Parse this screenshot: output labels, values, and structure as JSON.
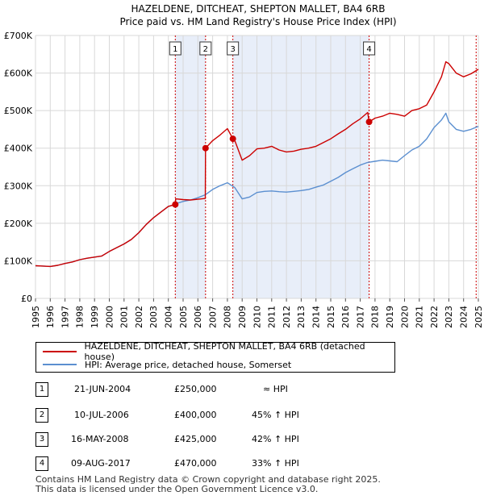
{
  "chart_data": {
    "type": "line",
    "title": "HAZELDENE, DITCHEAT, SHEPTON MALLET, BA4 6RB",
    "subtitle": "Price paid vs. HM Land Registry's House Price Index (HPI)",
    "xlabel": "",
    "ylabel": "",
    "xlim": [
      1995,
      2025
    ],
    "ylim": [
      0,
      700000
    ],
    "y_ticks": [
      0,
      100000,
      200000,
      300000,
      400000,
      500000,
      600000,
      700000
    ],
    "y_tick_labels": [
      "£0",
      "£100K",
      "£200K",
      "£300K",
      "£400K",
      "£500K",
      "£600K",
      "£700K"
    ],
    "x_ticks": [
      "1995",
      "1996",
      "1997",
      "1998",
      "1999",
      "2000",
      "2001",
      "2002",
      "2003",
      "2004",
      "2005",
      "2006",
      "2007",
      "2008",
      "2009",
      "2010",
      "2011",
      "2012",
      "2013",
      "2014",
      "2015",
      "2016",
      "2017",
      "2018",
      "2019",
      "2020",
      "2021",
      "2022",
      "2023",
      "2024",
      "2025"
    ],
    "grid": true,
    "colors": {
      "property": "#cc0000",
      "hpi": "#5b8fd0",
      "band": "#e8eef9",
      "marker_line": "#cc0000"
    },
    "series": [
      {
        "name": "HAZELDENE, DITCHEAT, SHEPTON MALLET, BA4 6RB (detached house)",
        "x": [
          1995.0,
          1995.5,
          1996.0,
          1996.5,
          1997.0,
          1997.5,
          1998.0,
          1998.5,
          1999.0,
          1999.5,
          2000.0,
          2000.5,
          2001.0,
          2001.5,
          2002.0,
          2002.5,
          2003.0,
          2003.5,
          2004.0,
          2004.47,
          2004.5,
          2005.0,
          2005.5,
          2006.0,
          2006.5,
          2006.52,
          2007.0,
          2007.5,
          2008.0,
          2008.37,
          2008.5,
          2009.0,
          2009.5,
          2010.0,
          2010.5,
          2011.0,
          2011.5,
          2012.0,
          2012.5,
          2013.0,
          2013.5,
          2014.0,
          2014.5,
          2015.0,
          2015.5,
          2016.0,
          2016.5,
          2017.0,
          2017.5,
          2017.6,
          2018.0,
          2018.5,
          2019.0,
          2019.5,
          2020.0,
          2020.5,
          2021.0,
          2021.5,
          2022.0,
          2022.5,
          2022.8,
          2023.0,
          2023.5,
          2024.0,
          2024.5,
          2025.0
        ],
        "values": [
          87000,
          86000,
          85000,
          88000,
          93000,
          97000,
          103000,
          107000,
          110000,
          113000,
          125000,
          135000,
          145000,
          157000,
          175000,
          197000,
          215000,
          230000,
          245000,
          250000,
          265000,
          263000,
          262000,
          264000,
          266000,
          400000,
          420000,
          435000,
          452000,
          425000,
          420000,
          368000,
          380000,
          398000,
          400000,
          405000,
          395000,
          390000,
          392000,
          397000,
          400000,
          405000,
          415000,
          425000,
          438000,
          450000,
          465000,
          478000,
          495000,
          470000,
          480000,
          485000,
          493000,
          490000,
          485000,
          500000,
          505000,
          515000,
          550000,
          590000,
          630000,
          625000,
          600000,
          590000,
          598000,
          610000
        ]
      },
      {
        "name": "HPI: Average price, detached house, Somerset",
        "x": [
          1995.0,
          1995.5,
          1996.0,
          1996.5,
          1997.0,
          1997.5,
          1998.0,
          1998.5,
          1999.0,
          1999.5,
          2000.0,
          2000.5,
          2001.0,
          2001.5,
          2002.0,
          2002.5,
          2003.0,
          2003.5,
          2004.0,
          2004.47,
          2004.5,
          2005.0,
          2005.5,
          2006.0,
          2006.5,
          2007.0,
          2007.5,
          2008.0,
          2008.5,
          2009.0,
          2009.5,
          2010.0,
          2010.5,
          2011.0,
          2011.5,
          2012.0,
          2012.5,
          2013.0,
          2013.5,
          2014.0,
          2014.5,
          2015.0,
          2015.5,
          2016.0,
          2016.5,
          2017.0,
          2017.5,
          2018.0,
          2018.5,
          2019.0,
          2019.5,
          2020.0,
          2020.5,
          2021.0,
          2021.5,
          2022.0,
          2022.5,
          2022.8,
          2023.0,
          2023.5,
          2024.0,
          2024.5,
          2025.0
        ],
        "values": [
          87000,
          86000,
          85000,
          88000,
          93000,
          97000,
          103000,
          107000,
          110000,
          113000,
          125000,
          135000,
          145000,
          157000,
          175000,
          197000,
          215000,
          230000,
          245000,
          250000,
          252000,
          258000,
          262000,
          268000,
          276000,
          290000,
          300000,
          308000,
          295000,
          265000,
          270000,
          282000,
          285000,
          286000,
          284000,
          283000,
          285000,
          287000,
          290000,
          296000,
          302000,
          312000,
          322000,
          335000,
          345000,
          355000,
          362000,
          365000,
          368000,
          366000,
          364000,
          380000,
          395000,
          405000,
          425000,
          455000,
          475000,
          493000,
          470000,
          450000,
          445000,
          450000,
          458000
        ]
      }
    ],
    "sales": [
      {
        "label": "1",
        "x": 2004.47,
        "value": 250000
      },
      {
        "label": "2",
        "x": 2006.52,
        "value": 400000
      },
      {
        "label": "3",
        "x": 2008.37,
        "value": 425000
      },
      {
        "label": "4",
        "x": 2017.6,
        "value": 470000
      }
    ],
    "shaded_bands": [
      [
        2004.47,
        2006.52
      ],
      [
        2008.37,
        2017.6
      ]
    ]
  },
  "legend": {
    "property_label": "HAZELDENE, DITCHEAT, SHEPTON MALLET, BA4 6RB (detached house)",
    "hpi_label": "HPI: Average price, detached house, Somerset"
  },
  "transactions": [
    {
      "num": "1",
      "date": "21-JUN-2004",
      "price": "£250,000",
      "hpi": "≈ HPI"
    },
    {
      "num": "2",
      "date": "10-JUL-2006",
      "price": "£400,000",
      "hpi": "45% ↑ HPI"
    },
    {
      "num": "3",
      "date": "16-MAY-2008",
      "price": "£425,000",
      "hpi": "42% ↑ HPI"
    },
    {
      "num": "4",
      "date": "09-AUG-2017",
      "price": "£470,000",
      "hpi": "33% ↑ HPI"
    }
  ],
  "footer": {
    "line1": "Contains HM Land Registry data © Crown copyright and database right 2025.",
    "line2": "This data is licensed under the Open Government Licence v3.0."
  }
}
